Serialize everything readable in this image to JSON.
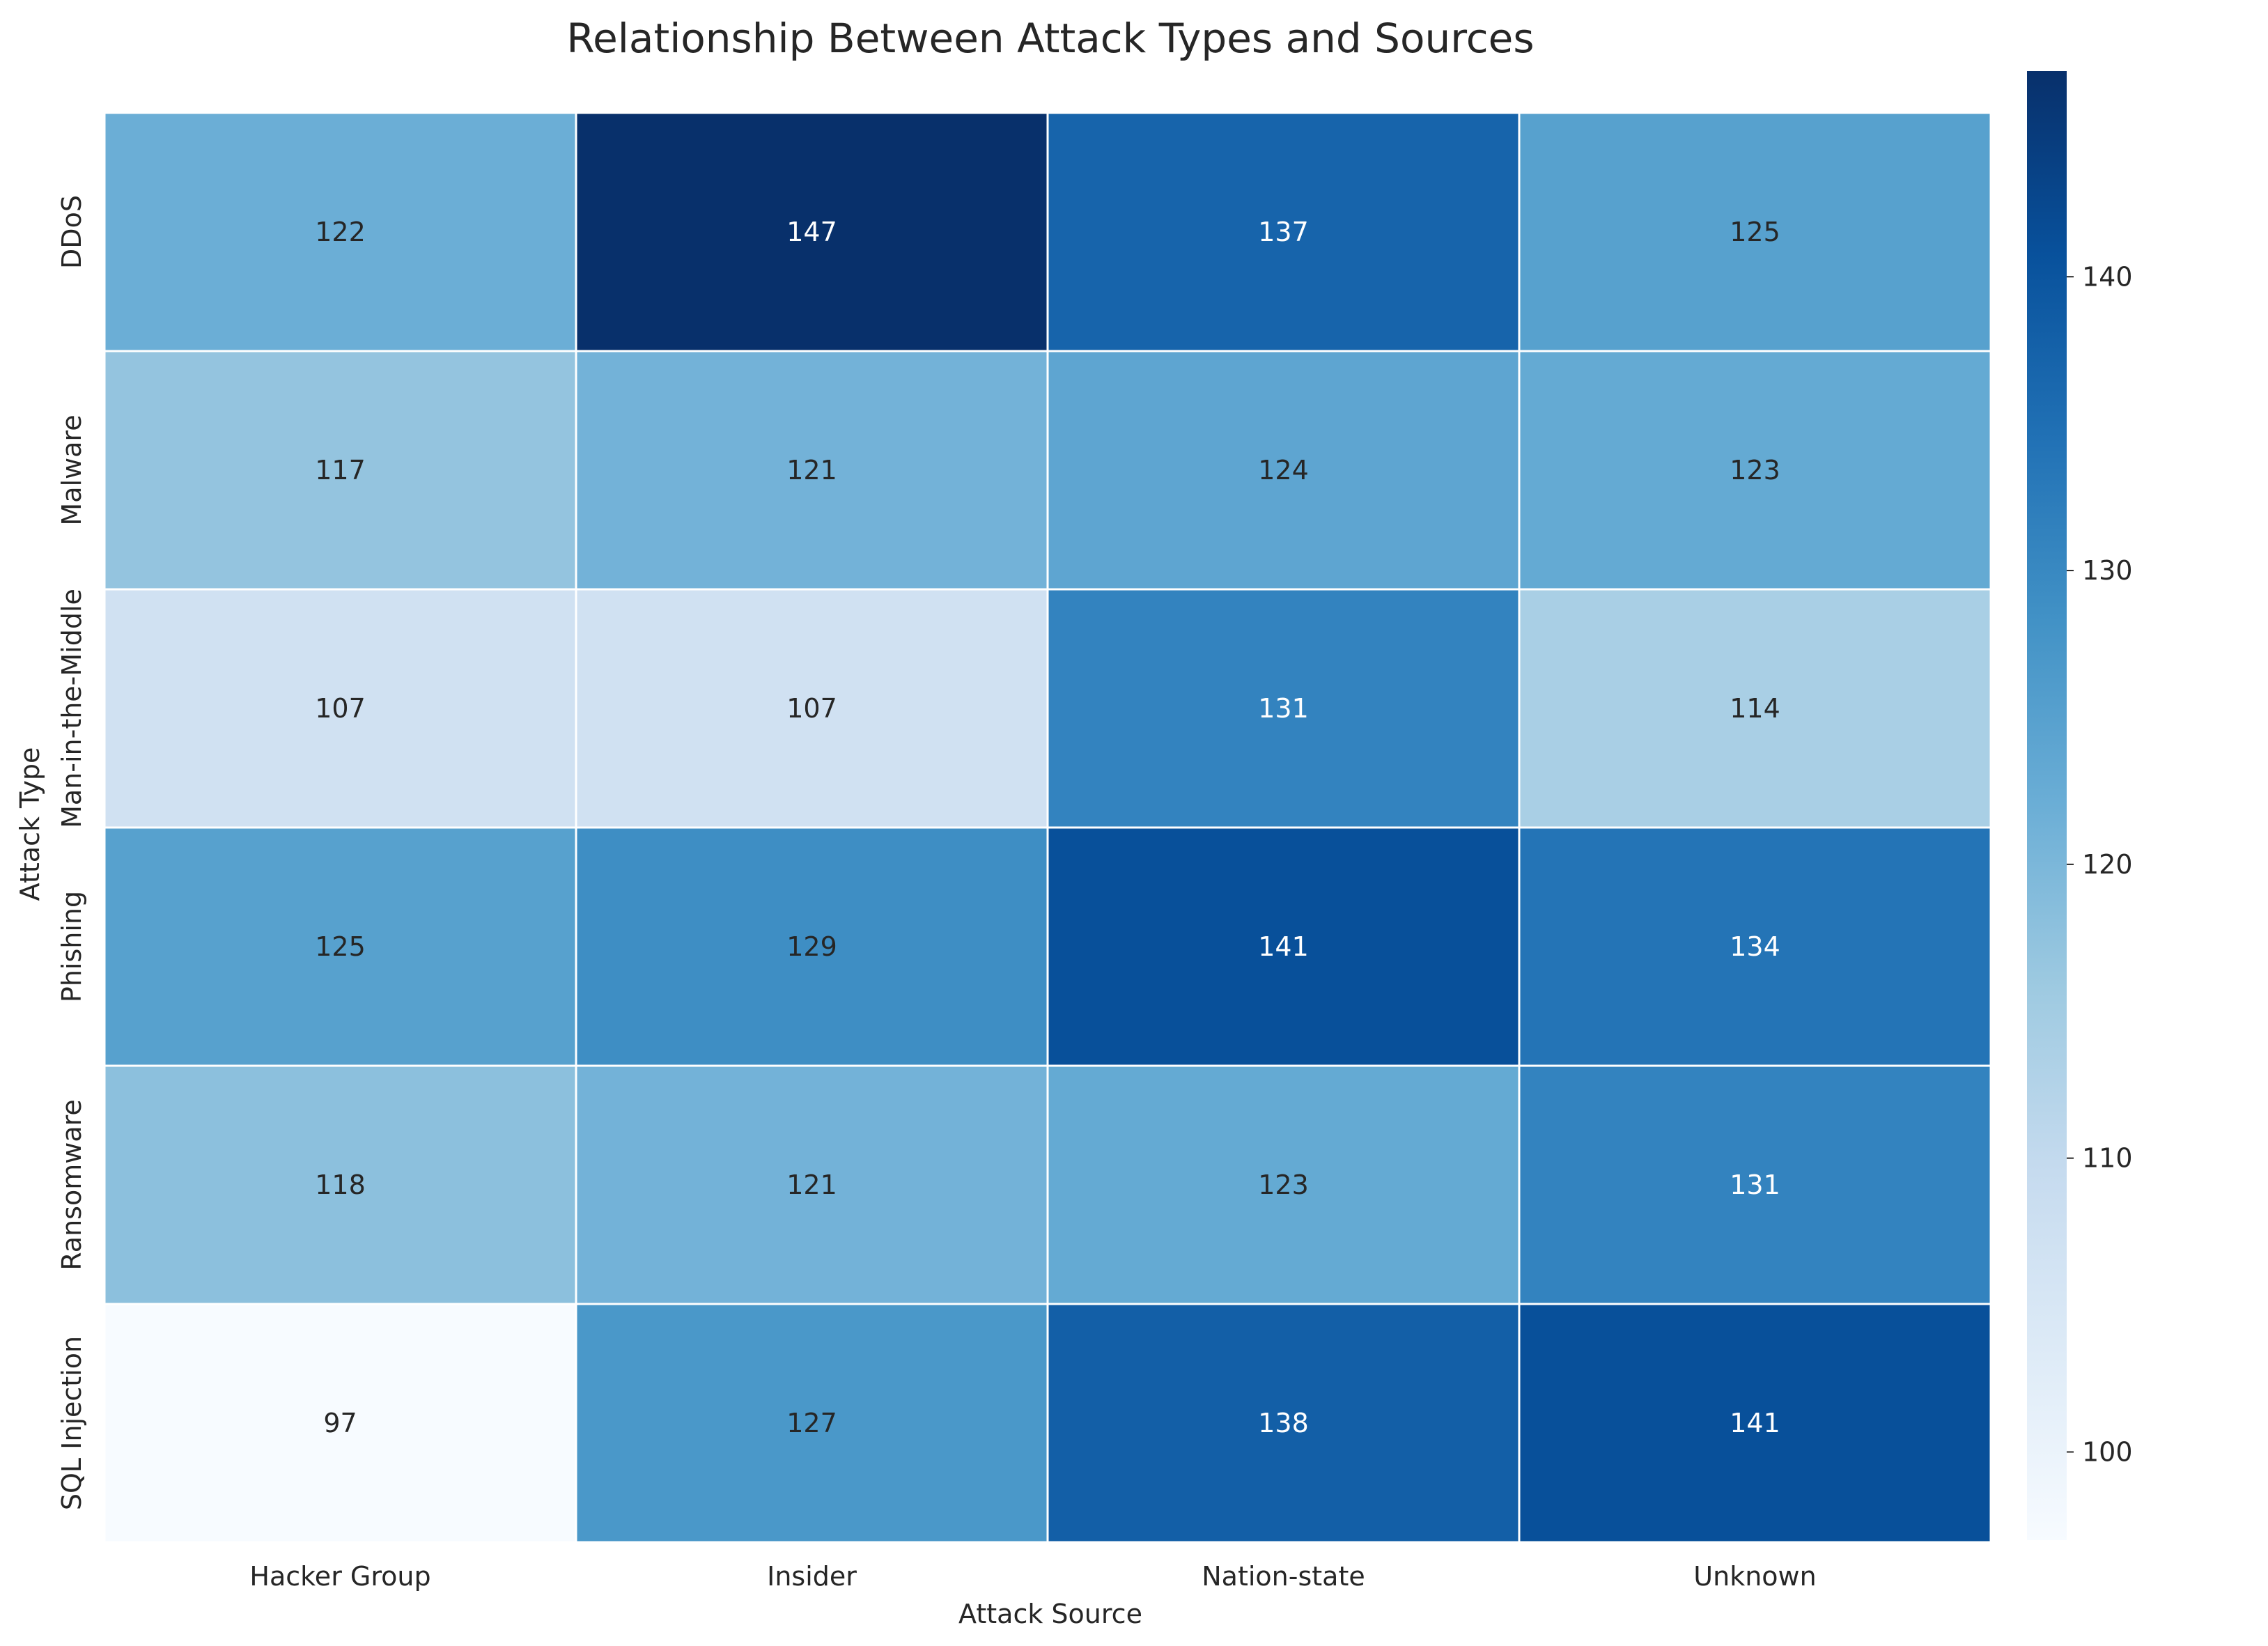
{
  "chart_data": {
    "type": "heatmap",
    "title": "Relationship Between Attack Types and Sources",
    "xlabel": "Attack Source",
    "ylabel": "Attack Type",
    "x_categories": [
      "Hacker Group",
      "Insider",
      "Nation-state",
      "Unknown"
    ],
    "y_categories": [
      "DDoS",
      "Malware",
      "Man-in-the-Middle",
      "Phishing",
      "Ransomware",
      "SQL Injection"
    ],
    "values": [
      [
        122,
        147,
        137,
        125
      ],
      [
        117,
        121,
        124,
        123
      ],
      [
        107,
        107,
        131,
        114
      ],
      [
        125,
        129,
        141,
        134
      ],
      [
        118,
        121,
        123,
        131
      ],
      [
        97,
        127,
        138,
        141
      ]
    ],
    "colormap": "Blues",
    "color_range": [
      97,
      147
    ],
    "colorbar_ticks": [
      100,
      110,
      120,
      130,
      140
    ],
    "annotations": true,
    "grid": false
  }
}
